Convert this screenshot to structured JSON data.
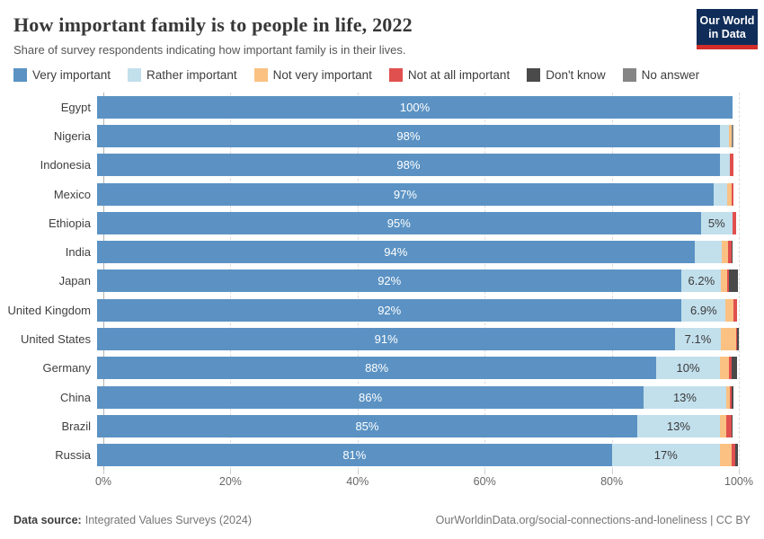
{
  "header": {
    "title": "How important family is to people in life, 2022",
    "subtitle": "Share of survey respondents indicating how important family is in their lives.",
    "logo": {
      "line1": "Our World",
      "line2": "in Data",
      "bg_color": "#102d59",
      "accent_color": "#d22d28"
    }
  },
  "footer": {
    "source_label": "Data source:",
    "source_text": "Integrated Values Surveys (2024)",
    "right_text": "OurWorldinData.org/social-connections-and-loneliness | CC BY"
  },
  "chart_data": {
    "type": "bar",
    "orientation": "horizontal",
    "stacked": true,
    "title": "How important family is to people in life, 2022",
    "xlabel": "",
    "ylabel": "",
    "xlim": [
      0,
      100
    ],
    "grid": "dashed-vertical",
    "legend_position": "top",
    "categories": [
      "Egypt",
      "Nigeria",
      "Indonesia",
      "Mexico",
      "Ethiopia",
      "India",
      "Japan",
      "United Kingdom",
      "United States",
      "Germany",
      "China",
      "Brazil",
      "Russia"
    ],
    "series": [
      {
        "name": "Very important",
        "color": "#5b92c3",
        "values": [
          100,
          98,
          98,
          97,
          95,
          94,
          92,
          92,
          91,
          88,
          86,
          85,
          81
        ]
      },
      {
        "name": "Rather important",
        "color": "#c2dfec",
        "values": [
          0,
          1.4,
          1.6,
          2.1,
          5,
          4.3,
          6.2,
          6.9,
          7.1,
          10,
          13,
          13,
          17
        ]
      },
      {
        "name": "Not very important",
        "color": "#fac182",
        "values": [
          0,
          0.4,
          0,
          0.7,
          0,
          1.0,
          0.9,
          1.2,
          2.4,
          1.5,
          0.6,
          1.0,
          1.8
        ]
      },
      {
        "name": "Not at all important",
        "color": "#e0504e",
        "values": [
          0,
          0,
          0.6,
          0.3,
          0.5,
          0.5,
          0.4,
          0.6,
          0.2,
          0.3,
          0.2,
          0.8,
          0.6
        ]
      },
      {
        "name": "Don't know",
        "color": "#4a4a4a",
        "values": [
          0,
          0,
          0,
          0,
          0,
          0.2,
          1.3,
          0,
          0.3,
          0.9,
          0.4,
          0.2,
          0.5
        ]
      },
      {
        "name": "No answer",
        "color": "#858585",
        "values": [
          0,
          0.3,
          0,
          0,
          0,
          0,
          0,
          0,
          0,
          0,
          0,
          0,
          0
        ]
      }
    ],
    "primary_labels": [
      "100%",
      "98%",
      "98%",
      "97%",
      "95%",
      "94%",
      "92%",
      "92%",
      "91%",
      "88%",
      "86%",
      "85%",
      "81%"
    ],
    "secondary_labels": [
      "",
      "",
      "",
      "",
      "5%",
      "",
      "6.2%",
      "6.9%",
      "7.1%",
      "10%",
      "13%",
      "13%",
      "17%"
    ],
    "x_ticks": [
      {
        "value": 0,
        "label": "0%"
      },
      {
        "value": 20,
        "label": "20%"
      },
      {
        "value": 40,
        "label": "40%"
      },
      {
        "value": 60,
        "label": "60%"
      },
      {
        "value": 80,
        "label": "80%"
      },
      {
        "value": 100,
        "label": "100%"
      }
    ]
  }
}
